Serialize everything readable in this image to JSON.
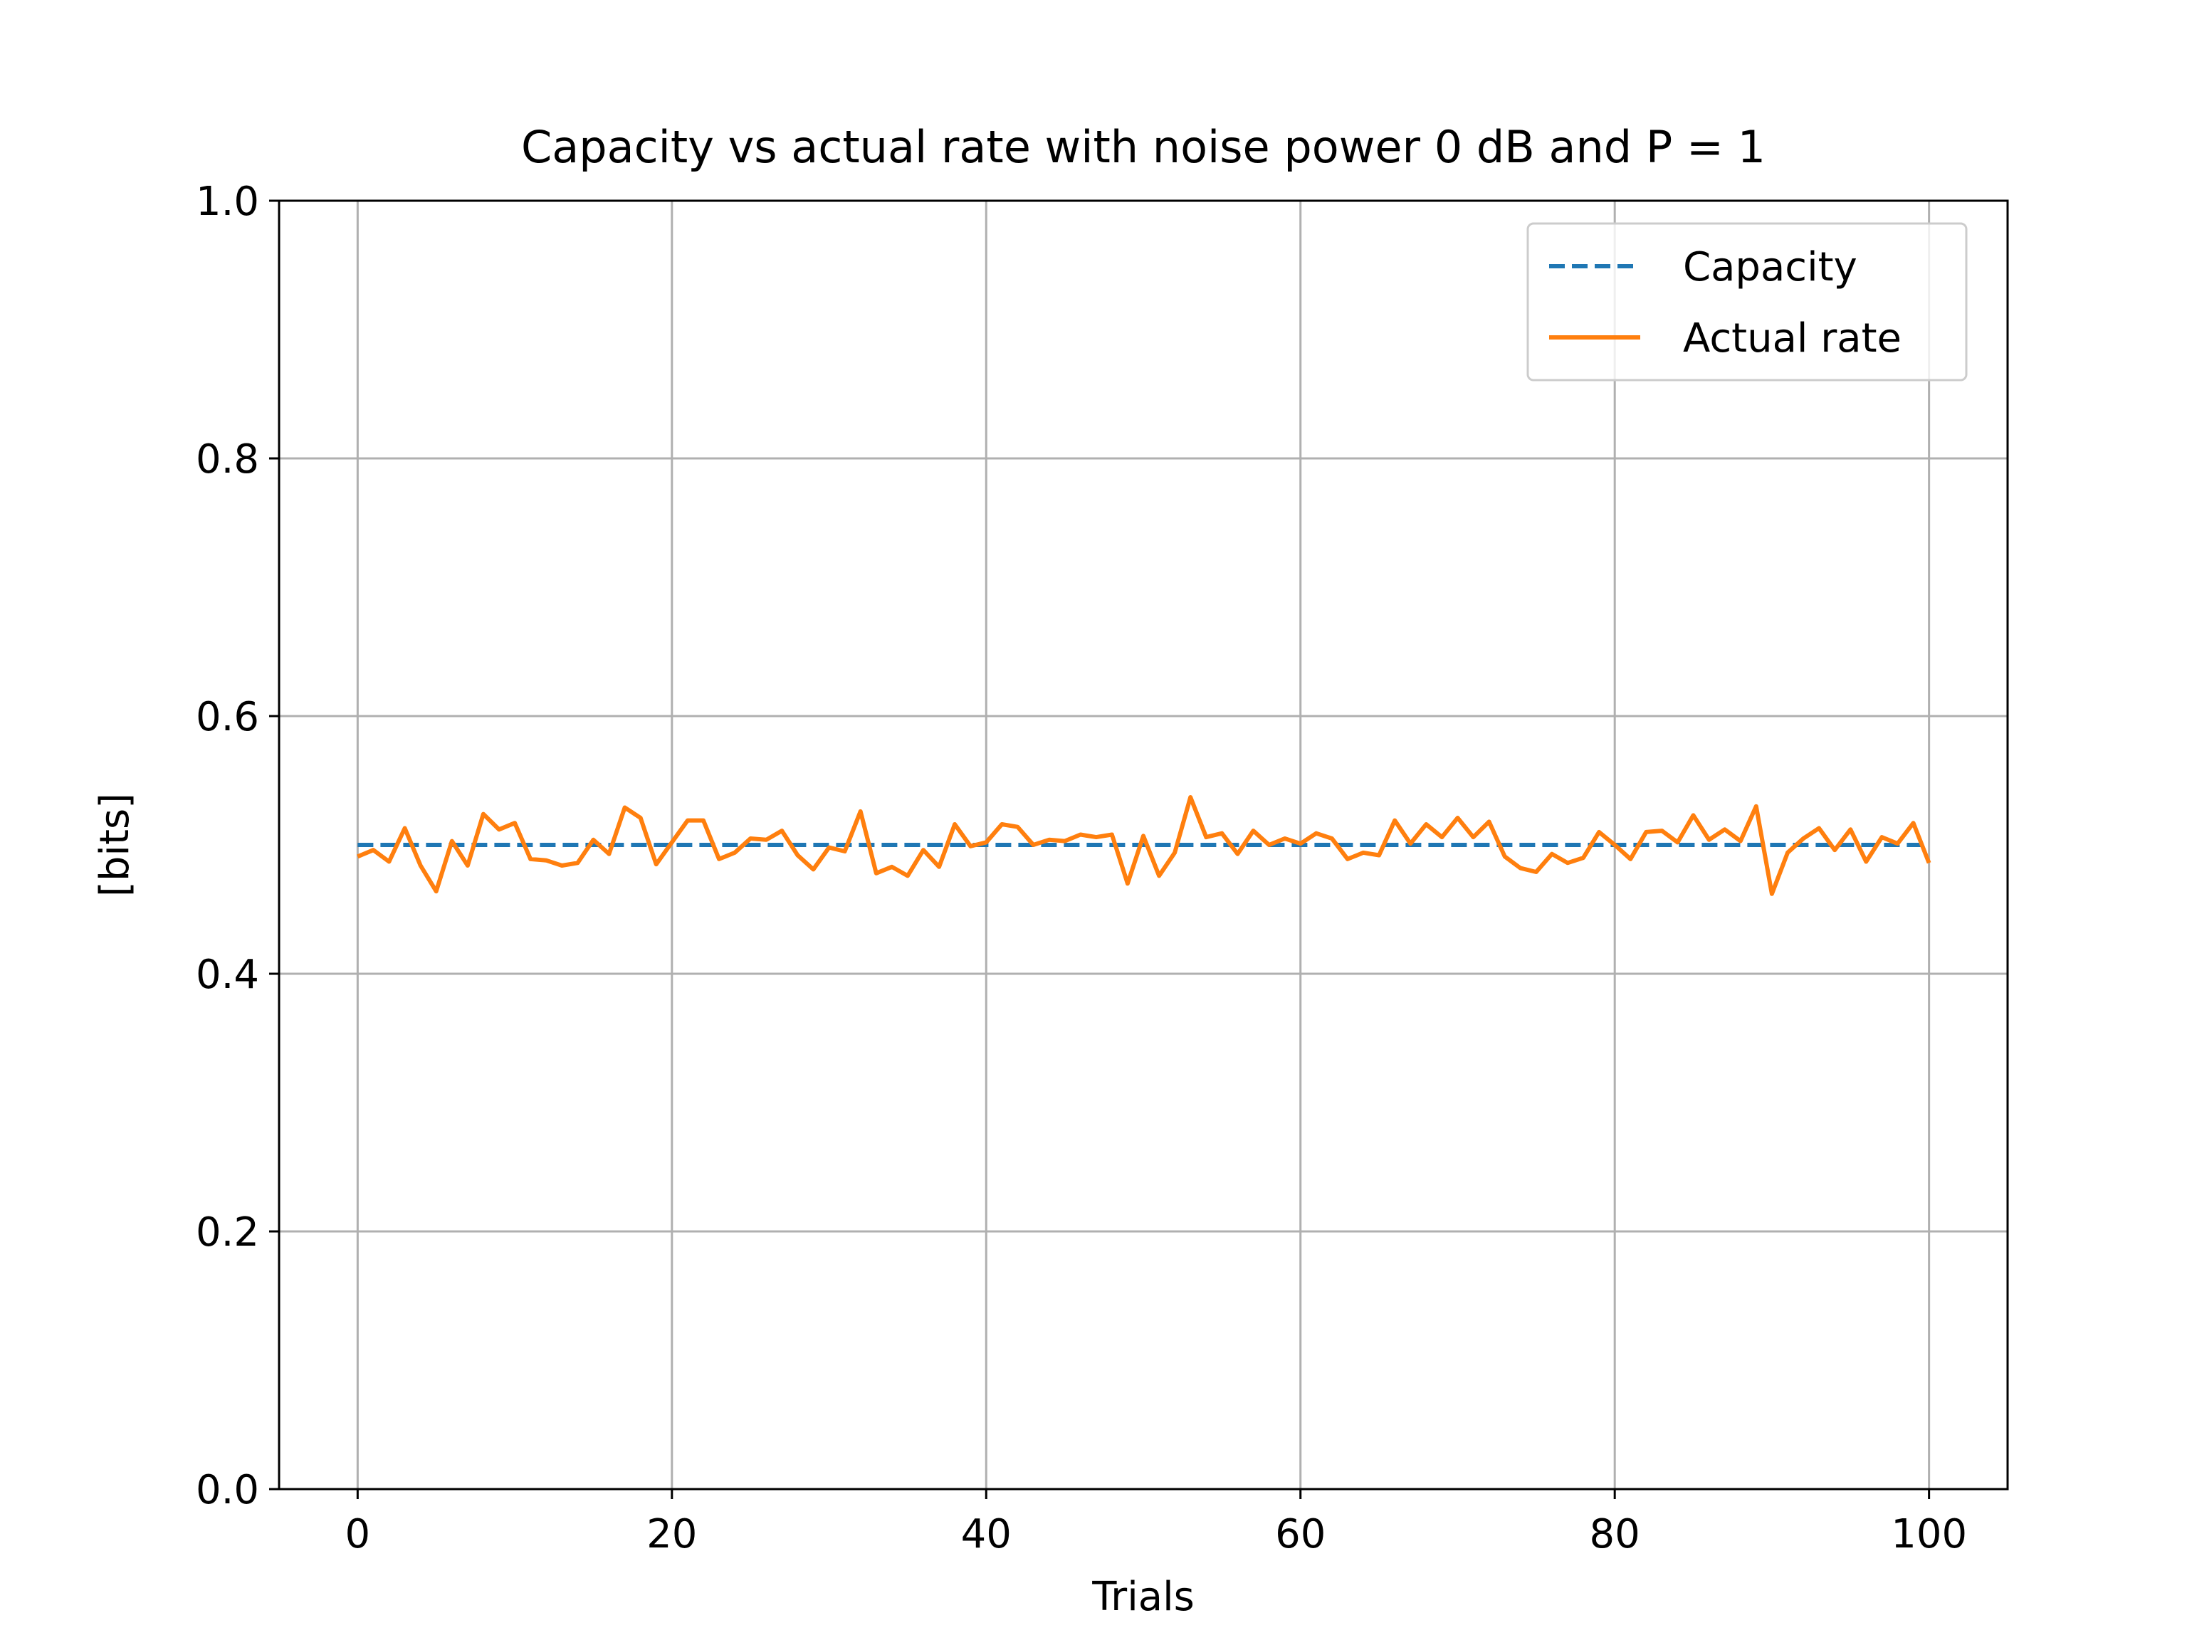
{
  "chart_data": {
    "type": "line",
    "title": "Capacity vs actual rate with noise power 0 dB and P = 1",
    "xlabel": "Trials",
    "ylabel": "[bits]",
    "xlim": [
      -5,
      105
    ],
    "ylim": [
      0,
      1.0
    ],
    "xticks": [
      0,
      20,
      40,
      60,
      80,
      100
    ],
    "yticks": [
      0.0,
      0.2,
      0.4,
      0.6,
      0.8,
      1.0
    ],
    "xtick_labels": [
      "0",
      "20",
      "40",
      "60",
      "80",
      "100"
    ],
    "ytick_labels": [
      "0.0",
      "0.2",
      "0.4",
      "0.6",
      "0.8",
      "1.0"
    ],
    "grid": true,
    "legend_position": "top-right",
    "series": [
      {
        "name": "Capacity",
        "style": "dashed",
        "color": "#1f77b4",
        "x": [
          0,
          100
        ],
        "y": [
          0.5,
          0.5
        ]
      },
      {
        "name": "Actual rate",
        "style": "solid",
        "color": "#ff7f0e",
        "x": [
          0,
          1,
          2,
          3,
          4,
          5,
          6,
          7,
          8,
          9,
          10,
          11,
          12,
          13,
          14,
          15,
          16,
          17,
          18,
          19,
          20,
          21,
          22,
          23,
          24,
          25,
          26,
          27,
          28,
          29,
          30,
          31,
          32,
          33,
          34,
          35,
          36,
          37,
          38,
          39,
          40,
          41,
          42,
          43,
          44,
          45,
          46,
          47,
          48,
          49,
          50,
          51,
          52,
          53,
          54,
          55,
          56,
          57,
          58,
          59,
          60,
          61,
          62,
          63,
          64,
          65,
          66,
          67,
          68,
          69,
          70,
          71,
          72,
          73,
          74,
          75,
          76,
          77,
          78,
          79,
          80,
          81,
          82,
          83,
          84,
          85,
          86,
          87,
          88,
          89,
          90,
          91,
          92,
          93,
          94,
          95,
          96,
          97,
          98,
          99,
          100
        ],
        "y": [
          0.491,
          0.496,
          0.487,
          0.513,
          0.484,
          0.464,
          0.503,
          0.484,
          0.524,
          0.512,
          0.517,
          0.489,
          0.488,
          0.484,
          0.486,
          0.504,
          0.493,
          0.529,
          0.521,
          0.485,
          0.502,
          0.519,
          0.519,
          0.489,
          0.494,
          0.505,
          0.504,
          0.511,
          0.492,
          0.481,
          0.498,
          0.495,
          0.526,
          0.478,
          0.483,
          0.476,
          0.496,
          0.483,
          0.516,
          0.499,
          0.502,
          0.516,
          0.514,
          0.5,
          0.504,
          0.503,
          0.508,
          0.506,
          0.508,
          0.47,
          0.507,
          0.476,
          0.494,
          0.537,
          0.506,
          0.509,
          0.493,
          0.511,
          0.5,
          0.505,
          0.501,
          0.509,
          0.505,
          0.489,
          0.494,
          0.492,
          0.519,
          0.501,
          0.516,
          0.506,
          0.521,
          0.506,
          0.518,
          0.491,
          0.482,
          0.479,
          0.493,
          0.486,
          0.49,
          0.51,
          0.5,
          0.489,
          0.51,
          0.511,
          0.502,
          0.523,
          0.504,
          0.512,
          0.503,
          0.53,
          0.462,
          0.494,
          0.505,
          0.513,
          0.496,
          0.512,
          0.487,
          0.506,
          0.501,
          0.517,
          0.486
        ]
      }
    ]
  }
}
